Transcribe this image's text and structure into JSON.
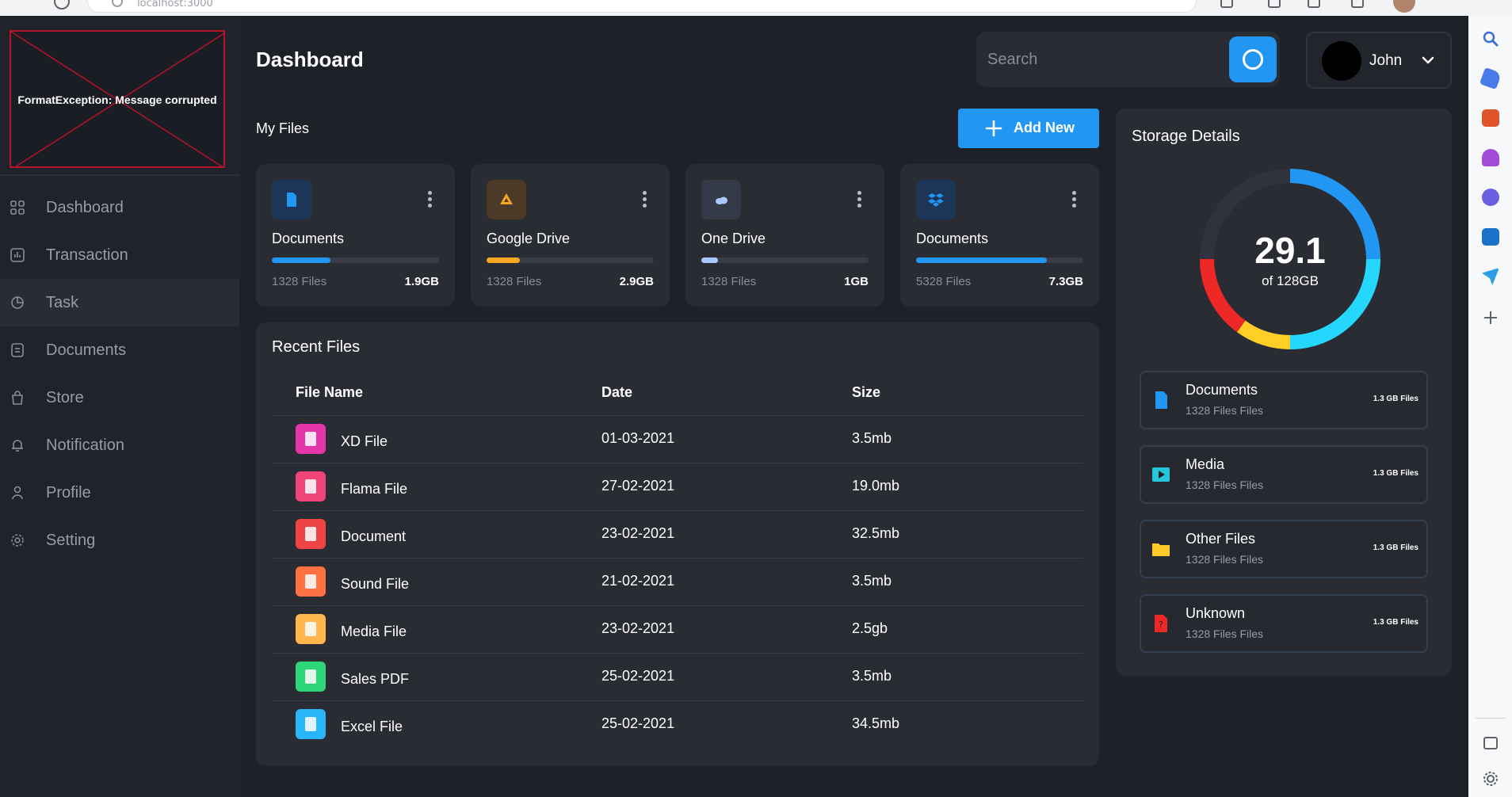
{
  "browser": {
    "address": "localhost:3000"
  },
  "logo": {
    "error_text": "FormatException: Message corrupted"
  },
  "sidebar": {
    "items": [
      {
        "label": "Dashboard",
        "icon": "grid-icon"
      },
      {
        "label": "Transaction",
        "icon": "chart-icon"
      },
      {
        "label": "Task",
        "icon": "pie-icon"
      },
      {
        "label": "Documents",
        "icon": "document-icon"
      },
      {
        "label": "Store",
        "icon": "bag-icon"
      },
      {
        "label": "Notification",
        "icon": "bell-icon"
      },
      {
        "label": "Profile",
        "icon": "user-icon"
      },
      {
        "label": "Setting",
        "icon": "gear-icon"
      }
    ],
    "active_index": 2
  },
  "header": {
    "title": "Dashboard",
    "search_placeholder": "Search",
    "user_name": "John"
  },
  "my_files": {
    "title": "My Files",
    "add_label": "Add New",
    "cards": [
      {
        "title": "Documents",
        "files": "1328 Files",
        "size": "1.9GB",
        "progress": 0.35,
        "color": "#2196f3",
        "icon_bg": "#1d3557",
        "icon": "document-icon"
      },
      {
        "title": "Google Drive",
        "files": "1328 Files",
        "size": "2.9GB",
        "progress": 0.2,
        "color": "#f5a623",
        "icon_bg": "#4a3a26",
        "icon": "google-drive-icon"
      },
      {
        "title": "One Drive",
        "files": "1328 Files",
        "size": "1GB",
        "progress": 0.1,
        "color": "#a9c8ff",
        "icon_bg": "#343a48",
        "icon": "cloud-icon"
      },
      {
        "title": "Documents",
        "files": "5328 Files",
        "size": "7.3GB",
        "progress": 0.78,
        "color": "#2196f3",
        "icon_bg": "#1d3557",
        "icon": "dropbox-icon"
      }
    ]
  },
  "recent_files": {
    "title": "Recent Files",
    "columns": [
      "File Name",
      "Date",
      "Size"
    ],
    "rows": [
      {
        "name": "XD File",
        "date": "01-03-2021",
        "size": "3.5mb",
        "color": "#e535ab"
      },
      {
        "name": "Flama File",
        "date": "27-02-2021",
        "size": "19.0mb",
        "color": "#f0437a"
      },
      {
        "name": "Document",
        "date": "23-02-2021",
        "size": "32.5mb",
        "color": "#ee4444"
      },
      {
        "name": "Sound File",
        "date": "21-02-2021",
        "size": "3.5mb",
        "color": "#ff7043"
      },
      {
        "name": "Media File",
        "date": "23-02-2021",
        "size": "2.5gb",
        "color": "#ffb74d"
      },
      {
        "name": "Sales PDF",
        "date": "25-02-2021",
        "size": "3.5mb",
        "color": "#2ed67a"
      },
      {
        "name": "Excel File",
        "date": "25-02-2021",
        "size": "34.5mb",
        "color": "#29b6f6"
      }
    ]
  },
  "storage": {
    "title": "Storage Details",
    "used": "29.1",
    "total_label": "of 128GB",
    "segments": [
      {
        "color": "#2196f3",
        "value": 0.25
      },
      {
        "color": "#26d7fd",
        "value": 0.25
      },
      {
        "color": "#ffcf26",
        "value": 0.1
      },
      {
        "color": "#ee2727",
        "value": 0.15
      },
      {
        "color": "#2f333d",
        "value": 0.25
      }
    ],
    "items": [
      {
        "name": "Documents",
        "count": "1328 Files Files",
        "size": "1.3 GB Files",
        "color": "#2196f3",
        "icon": "document-icon"
      },
      {
        "name": "Media",
        "count": "1328 Files Files",
        "size": "1.3 GB Files",
        "color": "#26c6da",
        "icon": "play-icon"
      },
      {
        "name": "Other Files",
        "count": "1328 Files Files",
        "size": "1.3 GB Files",
        "color": "#ffca28",
        "icon": "folder-icon"
      },
      {
        "name": "Unknown",
        "count": "1328 Files Files",
        "size": "1.3 GB Files",
        "color": "#ee2727",
        "icon": "unknown-file-icon"
      }
    ]
  }
}
